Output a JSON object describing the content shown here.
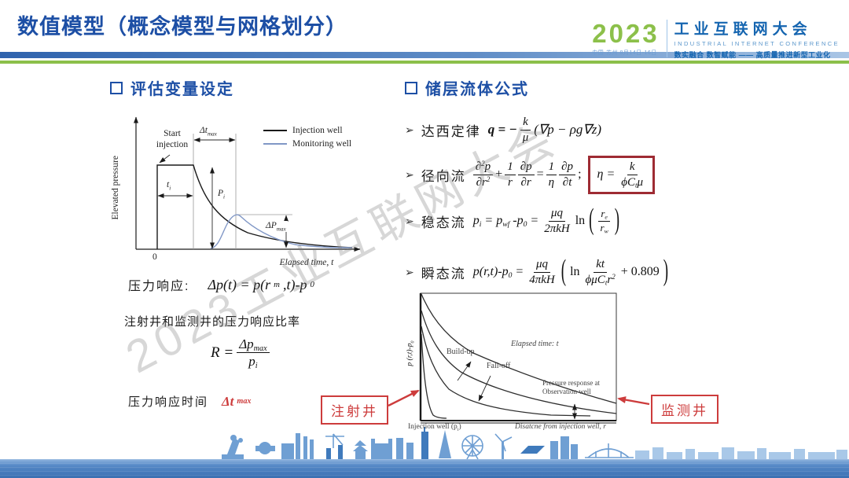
{
  "colors": {
    "brand_blue": "#1d4fa5",
    "brand_green": "#8cc04a",
    "accent_red": "#cd3c3c",
    "box_maroon": "#9e2b33",
    "curve_black": "#1a1a1a",
    "curve_blue": "#8097c6"
  },
  "header": {
    "title": "数值模型（概念模型与网格划分）",
    "logo": {
      "year": "2023",
      "date_line": "中国·苏州 8月14日-16日",
      "title_cn": "工业互联网大会",
      "title_en": "INDUSTRIAL INTERNET CONFERENCE",
      "slogan": "数实融合  数智赋能 —— 高质量推进新型工业化"
    }
  },
  "watermark": "2023工业互联网大会",
  "left": {
    "section_title": "评估变量设定",
    "chart": {
      "ylabel": "Elevated pressure",
      "xlabel": "Elapsed time, t",
      "origin_label": "0",
      "legend": [
        {
          "label": "Injection well",
          "color": "#1a1a1a"
        },
        {
          "label": "Monitoring well",
          "color": "#8097c6"
        }
      ],
      "annotations": {
        "start_injection": "Start injection",
        "ti": "t_{i}",
        "dt_max": "Δt_{max}",
        "pi": "P_{i}",
        "dp_max": "ΔP_{max}"
      }
    },
    "pressure_response_label": "压力响应:",
    "pressure_response_formula": "Δp(t) = p(r_{m},t)-p_{0}",
    "ratio_caption": "注射井和监测井的压力响应比率",
    "ratio": {
      "lhs": "R =",
      "num": "Δp_{max}",
      "den": "p_{i}"
    },
    "response_time_label": "压力响应时间",
    "response_time_value": "Δt_{max}",
    "injection_box_label": "注射井"
  },
  "right": {
    "section_title": "储层流体公式",
    "bullet_glyph": "➢",
    "parens": {
      "l": "(",
      "r": ")"
    },
    "darcy": {
      "label": "达西定律",
      "lhs": "q = −",
      "num": "k",
      "den": "μ",
      "rhs": "(∇p − ρg∇z)"
    },
    "radial": {
      "label": "径向流",
      "f1n": "∂^{2}p",
      "f1d": "∂r^{2}",
      "op1": "+",
      "f2n": "1",
      "f2d": "r",
      "f3n": "∂p",
      "f3d": "∂r",
      "op2": "=",
      "f4n": "1",
      "f4d": "η",
      "f5n": "∂p",
      "f5d": "∂t",
      "op3": ";",
      "box_lhs": "η =",
      "box_num": "k",
      "box_den": "ϕC_{t}μ"
    },
    "steady": {
      "label": "稳态流",
      "lhs": "p_{i} = p_{wf} -p_{0} =",
      "num": "μq",
      "den": "2πkH",
      "fn": "ln",
      "pnum": "r_{e}",
      "pden": "r_{w}"
    },
    "transient": {
      "label": "瞬态流",
      "lhs": "p(r,t)-p_{0} =",
      "num": "μq",
      "den": "4πkH",
      "fn": "ln",
      "inum": "kt",
      "iden": "ϕμC_{t}r^{2}",
      "tail": "+ 0.809"
    },
    "chart": {
      "ylabel": "p (r,t)-p_{0}",
      "xlabel": "Disatcne from injection well, r",
      "labels": {
        "build_up": "Build-up",
        "fall_off": "Fall-off",
        "elapsed": "Elapsed time: t",
        "pressure_response": "Pressure response at Observation well",
        "injection_well": "Injection well (p_{i})"
      }
    },
    "monitor_box_label": "监测井"
  }
}
